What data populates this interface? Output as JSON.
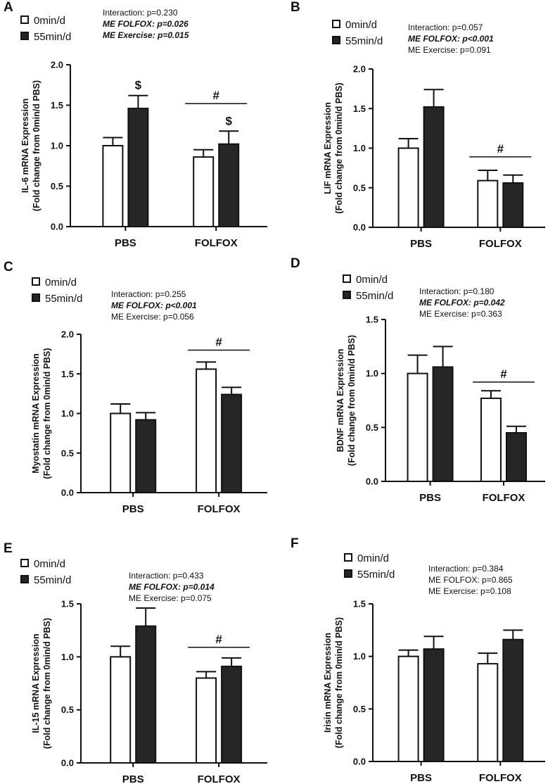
{
  "figure_title": "",
  "legend": {
    "labels": [
      "0min/d",
      "55min/d"
    ],
    "colors": [
      "#ffffff",
      "#262626"
    ]
  },
  "chart_data": [
    {
      "panel": "A",
      "type": "bar",
      "categories": [
        "PBS",
        "FOLFOX"
      ],
      "series": [
        {
          "name": "0min/d",
          "values": [
            1.0,
            0.86
          ],
          "errors": [
            0.1,
            0.09
          ]
        },
        {
          "name": "55min/d",
          "values": [
            1.46,
            1.02
          ],
          "errors": [
            0.16,
            0.16
          ]
        }
      ],
      "ylabel_line1": "IL-6 mRNA Expression",
      "ylabel_line2": "(Fold change from 0min/d PBS)",
      "ylim": [
        0,
        2.0
      ],
      "yticks": [
        "0.0",
        "0.5",
        "1.0",
        "1.5",
        "2.0"
      ],
      "stats": [
        {
          "text": "Interaction: p=0.230",
          "bold": false
        },
        {
          "text": "ME FOLFOX: p=0.026",
          "bold": true
        },
        {
          "text": "ME Exercise: p=0.015",
          "bold": true
        }
      ],
      "annotations": [
        {
          "text": "$",
          "type": "bar",
          "series": 1,
          "category": 0
        },
        {
          "text": "$",
          "type": "bar",
          "series": 1,
          "category": 1
        },
        {
          "text": "#",
          "type": "group",
          "category": 1,
          "y": 1.52
        }
      ]
    },
    {
      "panel": "B",
      "type": "bar",
      "categories": [
        "PBS",
        "FOLFOX"
      ],
      "series": [
        {
          "name": "0min/d",
          "values": [
            1.0,
            0.59
          ],
          "errors": [
            0.12,
            0.13
          ]
        },
        {
          "name": "55min/d",
          "values": [
            1.52,
            0.56
          ],
          "errors": [
            0.22,
            0.1
          ]
        }
      ],
      "ylabel_line1": "LIF mRNA Expression",
      "ylabel_line2": "(Fold change from 0min/d PBS)",
      "ylim": [
        0,
        2.0
      ],
      "yticks": [
        "0.0",
        "0.5",
        "1.0",
        "1.5",
        "2.0"
      ],
      "stats": [
        {
          "text": "Interaction: p=0.057",
          "bold": false
        },
        {
          "text": "ME FOLFOX: p<0.001",
          "bold": true
        },
        {
          "text": "ME Exercise: p=0.091",
          "bold": false
        }
      ],
      "annotations": [
        {
          "text": "#",
          "type": "group",
          "category": 1,
          "y": 0.89
        }
      ]
    },
    {
      "panel": "C",
      "type": "bar",
      "categories": [
        "PBS",
        "FOLFOX"
      ],
      "series": [
        {
          "name": "0min/d",
          "values": [
            1.0,
            1.56
          ],
          "errors": [
            0.12,
            0.09
          ]
        },
        {
          "name": "55min/d",
          "values": [
            0.92,
            1.24
          ],
          "errors": [
            0.09,
            0.09
          ]
        }
      ],
      "ylabel_line1": "Myostatin mRNA Expression",
      "ylabel_line2": "(Fold change from 0min/d PBS)",
      "ylim": [
        0,
        2.0
      ],
      "yticks": [
        "0.0",
        "0.5",
        "1.0",
        "1.5",
        "2.0"
      ],
      "stats": [
        {
          "text": "Interaction: p=0.255",
          "bold": false
        },
        {
          "text": "ME FOLFOX: p<0.001",
          "bold": true
        },
        {
          "text": "ME Exercise: p=0.056",
          "bold": false
        }
      ],
      "annotations": [
        {
          "text": "#",
          "type": "group",
          "category": 1,
          "y": 1.8
        }
      ]
    },
    {
      "panel": "D",
      "type": "bar",
      "categories": [
        "PBS",
        "FOLFOX"
      ],
      "series": [
        {
          "name": "0min/d",
          "values": [
            1.0,
            0.77
          ],
          "errors": [
            0.17,
            0.07
          ]
        },
        {
          "name": "55min/d",
          "values": [
            1.06,
            0.45
          ],
          "errors": [
            0.19,
            0.06
          ]
        }
      ],
      "ylabel_line1": "BDNF mRNA Expression",
      "ylabel_line2": "(Fold change from 0min/d PBS)",
      "ylim": [
        0,
        1.5
      ],
      "yticks": [
        "0.0",
        "0.5",
        "1.0",
        "1.5"
      ],
      "stats": [
        {
          "text": "Interaction: p=0.180",
          "bold": false
        },
        {
          "text": "ME FOLFOX: p=0.042",
          "bold": true
        },
        {
          "text": "ME Exercise: p=0.363",
          "bold": false
        }
      ],
      "annotations": [
        {
          "text": "#",
          "type": "group",
          "category": 1,
          "y": 0.92
        }
      ]
    },
    {
      "panel": "E",
      "type": "bar",
      "categories": [
        "PBS",
        "FOLFOX"
      ],
      "series": [
        {
          "name": "0min/d",
          "values": [
            1.0,
            0.8
          ],
          "errors": [
            0.1,
            0.06
          ]
        },
        {
          "name": "55min/d",
          "values": [
            1.29,
            0.91
          ],
          "errors": [
            0.17,
            0.08
          ]
        }
      ],
      "ylabel_line1": "IL-15 mRNA Expression",
      "ylabel_line2": "(Fold change from 0min/d PBS)",
      "ylim": [
        0,
        1.5
      ],
      "yticks": [
        "0.0",
        "0.5",
        "1.0",
        "1.5"
      ],
      "stats": [
        {
          "text": "Interaction: p=0.433",
          "bold": false
        },
        {
          "text": "ME FOLFOX: p=0.014",
          "bold": true
        },
        {
          "text": "ME Exercise: p=0.075",
          "bold": false
        }
      ],
      "annotations": [
        {
          "text": "#",
          "type": "group",
          "category": 1,
          "y": 1.09
        }
      ]
    },
    {
      "panel": "F",
      "type": "bar",
      "categories": [
        "PBS",
        "FOLFOX"
      ],
      "series": [
        {
          "name": "0min/d",
          "values": [
            1.0,
            0.93
          ],
          "errors": [
            0.06,
            0.1
          ]
        },
        {
          "name": "55min/d",
          "values": [
            1.07,
            1.16
          ],
          "errors": [
            0.12,
            0.09
          ]
        }
      ],
      "ylabel_line1": "Irisin mRNA Expression",
      "ylabel_line2": "(Fold change from 0min/d PBS)",
      "ylim": [
        0,
        1.5
      ],
      "yticks": [
        "0.0",
        "0.5",
        "1.0",
        "1.5"
      ],
      "stats": [
        {
          "text": "Interaction: p=0.384",
          "bold": false
        },
        {
          "text": "ME FOLFOX: p=0.865",
          "bold": false
        },
        {
          "text": "ME Exercise: p=0.108",
          "bold": false
        }
      ],
      "annotations": []
    }
  ]
}
